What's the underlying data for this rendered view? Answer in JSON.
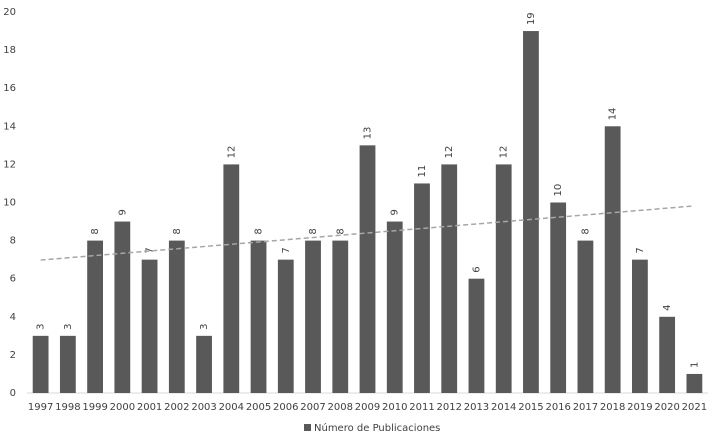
{
  "chart_data": {
    "type": "bar",
    "categories": [
      "1997",
      "1998",
      "1999",
      "2000",
      "2001",
      "2002",
      "2003",
      "2004",
      "2005",
      "2006",
      "2007",
      "2008",
      "2009",
      "2010",
      "2011",
      "2012",
      "2013",
      "2014",
      "2015",
      "2016",
      "2017",
      "2018",
      "2019",
      "2020",
      "2021"
    ],
    "series": [
      {
        "name": "Número de Publicaciones",
        "color": "#595959",
        "values": [
          3,
          3,
          8,
          9,
          7,
          8,
          3,
          12,
          8,
          7,
          8,
          8,
          13,
          9,
          11,
          12,
          6,
          12,
          19,
          10,
          8,
          14,
          7,
          4,
          1
        ]
      }
    ],
    "ylim": [
      0,
      20
    ],
    "yticks": [
      0,
      2,
      4,
      6,
      8,
      10,
      12,
      14,
      16,
      18,
      20
    ],
    "grid": false,
    "data_labels": true,
    "trendline": true,
    "trendline_color": "#a6a6a6",
    "legend": "bottom"
  }
}
